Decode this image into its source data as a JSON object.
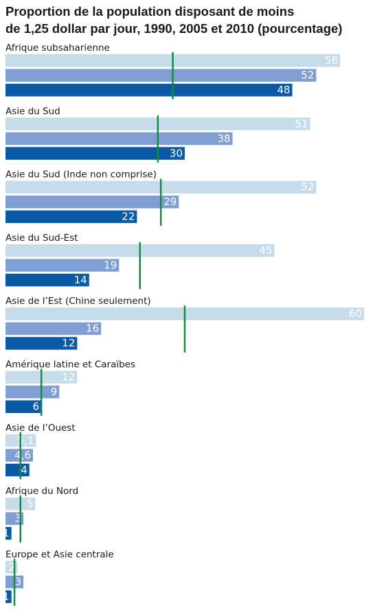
{
  "colors": {
    "y1990": "#c6dceb",
    "y2005": "#7f9fd2",
    "y2010": "#0b5aa5",
    "target": "#138a45",
    "label_light": "#ffffff",
    "label_dark": "#1a1a1a",
    "text": "#1a1a1a"
  },
  "chart_data": {
    "type": "bar",
    "orientation": "horizontal",
    "title": "Proportion de la population disposant de moins de 1,25 dollar par jour, 1990, 2005 et 2010 (pourcentage)",
    "title_lines": [
      "Proportion de la population disposant de moins",
      "de 1,25 dollar par jour, 1990, 2005 et 2010 (pourcentage)"
    ],
    "series_keys": [
      "1990",
      "2005",
      "2010"
    ],
    "xlim": [
      0,
      60
    ],
    "grid": false,
    "legend": "none",
    "categories": [
      "Afrique subsaharienne",
      "Asie du Sud",
      "Asie du Sud (Inde non comprise)",
      "Asie du Sud-Est",
      "Asie de l’Est (Chine seulement)",
      "Amérique latine et Caraïbes",
      "Asie de l’Ouest",
      "Afrique du Nord",
      "Europe et Asie centrale"
    ],
    "groups": [
      {
        "category": "Afrique subsaharienne",
        "values": [
          56,
          52,
          48
        ],
        "labels": [
          "56",
          "52",
          "48"
        ],
        "target": 28
      },
      {
        "category": "Asie du Sud",
        "values": [
          51,
          38,
          30
        ],
        "labels": [
          "51",
          "38",
          "30"
        ],
        "target": 25.5
      },
      {
        "category": "Asie du Sud (Inde non comprise)",
        "values": [
          52,
          29,
          22
        ],
        "labels": [
          "52",
          "29",
          "22"
        ],
        "target": 26
      },
      {
        "category": "Asie du Sud-Est",
        "values": [
          45,
          19,
          14
        ],
        "labels": [
          "45",
          "19",
          "14"
        ],
        "target": 22.5
      },
      {
        "category": "Asie de l’Est (Chine seulement)",
        "values": [
          60,
          16,
          12
        ],
        "labels": [
          "60",
          "16",
          "12"
        ],
        "target": 30
      },
      {
        "category": "Amérique latine et Caraïbes",
        "values": [
          12,
          9,
          6
        ],
        "labels": [
          "12",
          "9",
          "6"
        ],
        "target": 6
      },
      {
        "category": "Asie de l’Ouest",
        "values": [
          5.1,
          4.6,
          4
        ],
        "labels": [
          "5,1",
          "4,6",
          "4"
        ],
        "target": 2.5
      },
      {
        "category": "Afrique du Nord",
        "values": [
          5,
          3,
          1
        ],
        "labels": [
          "5",
          "3",
          "1"
        ],
        "target": 2.5
      },
      {
        "category": "Europe et Asie centrale",
        "values": [
          2,
          3,
          1
        ],
        "labels": [
          "2",
          "3",
          "1"
        ],
        "target": 1.5
      }
    ]
  }
}
